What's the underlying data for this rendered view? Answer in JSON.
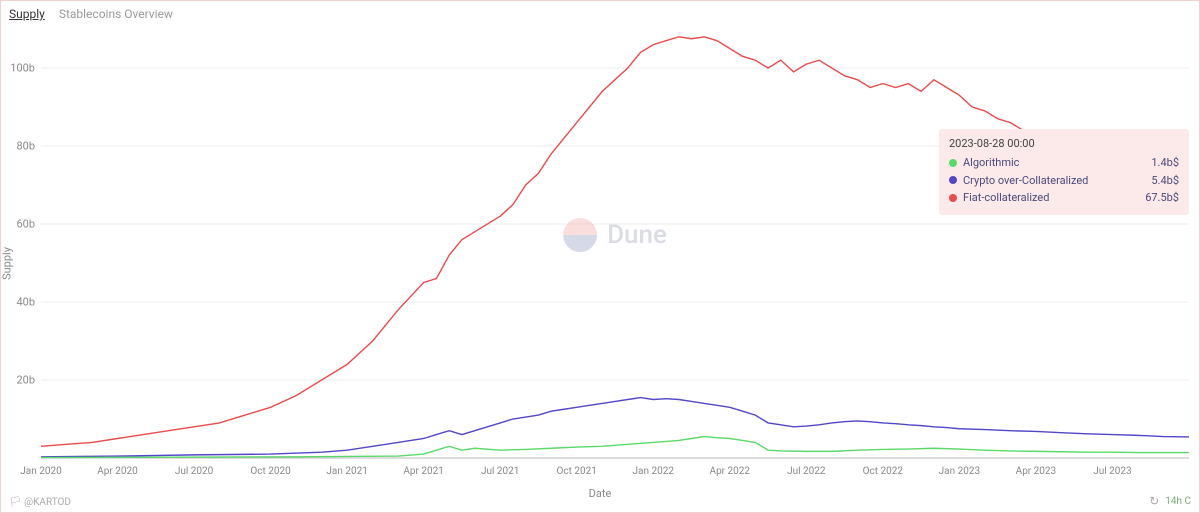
{
  "tabs": [
    {
      "label": "Supply",
      "active": true
    },
    {
      "label": "Stablecoins Overview",
      "active": false
    }
  ],
  "chart": {
    "type": "line",
    "x_label": "Date",
    "y_label": "Supply",
    "xlim": [
      0,
      45
    ],
    "ylim": [
      0,
      110
    ],
    "y_ticks": [
      {
        "v": 20,
        "label": "20b"
      },
      {
        "v": 40,
        "label": "40b"
      },
      {
        "v": 60,
        "label": "60b"
      },
      {
        "v": 80,
        "label": "80b"
      },
      {
        "v": 100,
        "label": "100b"
      }
    ],
    "x_ticks": [
      {
        "v": 0,
        "label": "Jan 2020"
      },
      {
        "v": 3,
        "label": "Apr 2020"
      },
      {
        "v": 6,
        "label": "Jul 2020"
      },
      {
        "v": 9,
        "label": "Oct 2020"
      },
      {
        "v": 12,
        "label": "Jan 2021"
      },
      {
        "v": 15,
        "label": "Apr 2021"
      },
      {
        "v": 18,
        "label": "Jul 2021"
      },
      {
        "v": 21,
        "label": "Oct 2021"
      },
      {
        "v": 24,
        "label": "Jan 2022"
      },
      {
        "v": 27,
        "label": "Apr 2022"
      },
      {
        "v": 30,
        "label": "Jul 2022"
      },
      {
        "v": 33,
        "label": "Oct 2022"
      },
      {
        "v": 36,
        "label": "Jan 2023"
      },
      {
        "v": 39,
        "label": "Apr 2023"
      },
      {
        "v": 42,
        "label": "Jul 2023"
      }
    ],
    "background_color": "#ffffff",
    "grid_color": "#eeeeee",
    "axis_color": "#cccccc",
    "line_width": 1.4,
    "series": [
      {
        "name": "Fiat-collateralized",
        "color": "#e84c4c",
        "points": [
          [
            0,
            3
          ],
          [
            1,
            3.5
          ],
          [
            2,
            4
          ],
          [
            3,
            5
          ],
          [
            4,
            6
          ],
          [
            5,
            7
          ],
          [
            6,
            8
          ],
          [
            7,
            9
          ],
          [
            8,
            11
          ],
          [
            9,
            13
          ],
          [
            10,
            16
          ],
          [
            11,
            20
          ],
          [
            12,
            24
          ],
          [
            13,
            30
          ],
          [
            14,
            38
          ],
          [
            15,
            45
          ],
          [
            15.5,
            46
          ],
          [
            16,
            52
          ],
          [
            16.5,
            56
          ],
          [
            17,
            58
          ],
          [
            18,
            62
          ],
          [
            18.5,
            65
          ],
          [
            19,
            70
          ],
          [
            19.5,
            73
          ],
          [
            20,
            78
          ],
          [
            20.5,
            82
          ],
          [
            21,
            86
          ],
          [
            21.5,
            90
          ],
          [
            22,
            94
          ],
          [
            22.5,
            97
          ],
          [
            23,
            100
          ],
          [
            23.5,
            104
          ],
          [
            24,
            106
          ],
          [
            24.5,
            107
          ],
          [
            25,
            108
          ],
          [
            25.5,
            107.5
          ],
          [
            26,
            108
          ],
          [
            26.5,
            107
          ],
          [
            27,
            105
          ],
          [
            27.5,
            103
          ],
          [
            28,
            102
          ],
          [
            28.5,
            100
          ],
          [
            29,
            102
          ],
          [
            29.5,
            99
          ],
          [
            30,
            101
          ],
          [
            30.5,
            102
          ],
          [
            31,
            100
          ],
          [
            31.5,
            98
          ],
          [
            32,
            97
          ],
          [
            32.5,
            95
          ],
          [
            33,
            96
          ],
          [
            33.5,
            95
          ],
          [
            34,
            96
          ],
          [
            34.5,
            94
          ],
          [
            35,
            97
          ],
          [
            35.5,
            95
          ],
          [
            36,
            93
          ],
          [
            36.5,
            90
          ],
          [
            37,
            89
          ],
          [
            37.5,
            87
          ],
          [
            38,
            86
          ],
          [
            38.5,
            84
          ],
          [
            39,
            83
          ],
          [
            39.5,
            80
          ],
          [
            40,
            78
          ],
          [
            40.5,
            76
          ],
          [
            41,
            74
          ],
          [
            41.5,
            72
          ],
          [
            42,
            70
          ],
          [
            42.5,
            69
          ],
          [
            43,
            68
          ],
          [
            43.5,
            68
          ],
          [
            44,
            67.5
          ],
          [
            45,
            67.5
          ]
        ]
      },
      {
        "name": "Crypto over-Collateralized",
        "color": "#5247c9",
        "points": [
          [
            0,
            0.3
          ],
          [
            3,
            0.5
          ],
          [
            6,
            0.8
          ],
          [
            9,
            1
          ],
          [
            11,
            1.5
          ],
          [
            12,
            2
          ],
          [
            13,
            3
          ],
          [
            14,
            4
          ],
          [
            15,
            5
          ],
          [
            15.5,
            6
          ],
          [
            16,
            7
          ],
          [
            16.5,
            6
          ],
          [
            17,
            7
          ],
          [
            17.5,
            8
          ],
          [
            18,
            9
          ],
          [
            18.5,
            10
          ],
          [
            19,
            10.5
          ],
          [
            19.5,
            11
          ],
          [
            20,
            12
          ],
          [
            20.5,
            12.5
          ],
          [
            21,
            13
          ],
          [
            21.5,
            13.5
          ],
          [
            22,
            14
          ],
          [
            22.5,
            14.5
          ],
          [
            23,
            15
          ],
          [
            23.5,
            15.5
          ],
          [
            24,
            15
          ],
          [
            24.5,
            15.2
          ],
          [
            25,
            15
          ],
          [
            25.5,
            14.5
          ],
          [
            26,
            14
          ],
          [
            26.5,
            13.5
          ],
          [
            27,
            13
          ],
          [
            27.5,
            12
          ],
          [
            28,
            11
          ],
          [
            28.5,
            9
          ],
          [
            29,
            8.5
          ],
          [
            29.5,
            8
          ],
          [
            30,
            8.2
          ],
          [
            30.5,
            8.5
          ],
          [
            31,
            9
          ],
          [
            31.5,
            9.3
          ],
          [
            32,
            9.5
          ],
          [
            32.5,
            9.3
          ],
          [
            33,
            9
          ],
          [
            33.5,
            8.8
          ],
          [
            34,
            8.5
          ],
          [
            34.5,
            8.3
          ],
          [
            35,
            8
          ],
          [
            35.5,
            7.8
          ],
          [
            36,
            7.5
          ],
          [
            37,
            7.3
          ],
          [
            38,
            7
          ],
          [
            39,
            6.8
          ],
          [
            40,
            6.5
          ],
          [
            41,
            6.2
          ],
          [
            42,
            6
          ],
          [
            43,
            5.8
          ],
          [
            44,
            5.5
          ],
          [
            45,
            5.4
          ]
        ]
      },
      {
        "name": "Algorithmic",
        "color": "#5bd96a",
        "points": [
          [
            0,
            0.1
          ],
          [
            5,
            0.2
          ],
          [
            10,
            0.3
          ],
          [
            14,
            0.5
          ],
          [
            15,
            1
          ],
          [
            15.5,
            2
          ],
          [
            16,
            3
          ],
          [
            16.5,
            2
          ],
          [
            17,
            2.5
          ],
          [
            18,
            2
          ],
          [
            19,
            2.2
          ],
          [
            20,
            2.5
          ],
          [
            21,
            2.8
          ],
          [
            22,
            3
          ],
          [
            23,
            3.5
          ],
          [
            24,
            4
          ],
          [
            25,
            4.5
          ],
          [
            25.5,
            5
          ],
          [
            26,
            5.5
          ],
          [
            26.5,
            5.2
          ],
          [
            27,
            5
          ],
          [
            27.5,
            4.5
          ],
          [
            28,
            4
          ],
          [
            28.5,
            2
          ],
          [
            29,
            1.8
          ],
          [
            30,
            1.7
          ],
          [
            31,
            1.7
          ],
          [
            32,
            2
          ],
          [
            33,
            2.2
          ],
          [
            34,
            2.3
          ],
          [
            35,
            2.5
          ],
          [
            36,
            2.3
          ],
          [
            37,
            2
          ],
          [
            38,
            1.8
          ],
          [
            39,
            1.7
          ],
          [
            40,
            1.6
          ],
          [
            41,
            1.5
          ],
          [
            42,
            1.5
          ],
          [
            43,
            1.4
          ],
          [
            44,
            1.4
          ],
          [
            45,
            1.4
          ]
        ]
      }
    ]
  },
  "tooltip": {
    "title": "2023-08-28 00:00",
    "rows": [
      {
        "label": "Algorithmic",
        "value": "1.4b$",
        "color": "#5bd96a"
      },
      {
        "label": "Crypto over-Collateralized",
        "value": "5.4b$",
        "color": "#5247c9"
      },
      {
        "label": "Fiat-collateralized",
        "value": "67.5b$",
        "color": "#e84c4c"
      }
    ]
  },
  "watermark": {
    "text": "Dune",
    "top_color": "#f2a2a0",
    "bottom_color": "#8a93c0"
  },
  "footer": {
    "left": "🏳 @KARTOD",
    "right": "14h C"
  }
}
